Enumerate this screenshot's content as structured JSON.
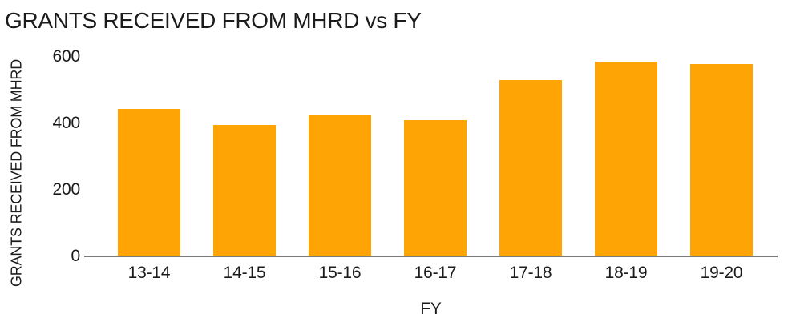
{
  "colors": {
    "bar": "#FFA405",
    "axis_line": "#7a7a7a",
    "text": "#1b1b1b",
    "background": "#ffffff"
  },
  "chart_data": {
    "type": "bar",
    "title": "GRANTS RECEIVED FROM MHRD vs FY",
    "xlabel": "FY",
    "ylabel": "GRANTS RECEIVED FROM MHRD",
    "categories": [
      "13-14",
      "14-15",
      "15-16",
      "16-17",
      "17-18",
      "18-19",
      "19-20"
    ],
    "values": [
      445,
      395,
      425,
      410,
      530,
      585,
      580
    ],
    "yticks": [
      0,
      200,
      400,
      600
    ],
    "ylim": [
      0,
      620
    ],
    "grid": false,
    "legend": "none",
    "bar_color": "#FFA405"
  }
}
